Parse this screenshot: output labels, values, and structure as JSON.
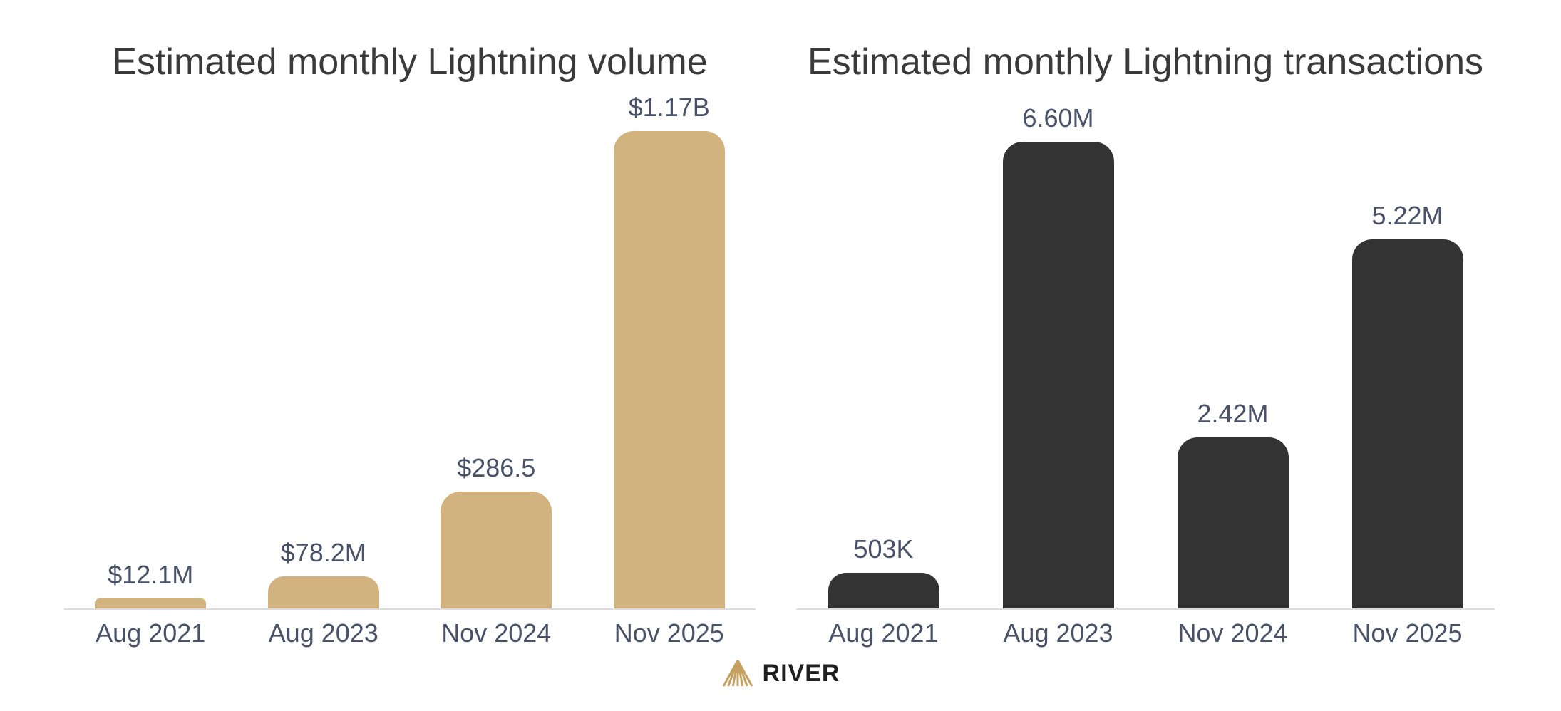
{
  "colors": {
    "background": "#ffffff",
    "title_text": "#3a3a3a",
    "label_text": "#4a5269",
    "axis_line": "#dcdcdc",
    "volume_bar": "#d2b27f",
    "transactions_bar": "#333333",
    "logo_gold": "#c5a05f",
    "logo_text": "#1f1f1f"
  },
  "chart_data": [
    {
      "type": "bar",
      "title": "Estimated monthly Lightning volume",
      "categories": [
        "Aug 2021",
        "Aug 2023",
        "Nov 2024",
        "Nov 2025"
      ],
      "values": [
        12.1,
        78.2,
        286.5,
        1170
      ],
      "value_unit": "USD millions",
      "value_labels": [
        "$12.1M",
        "$78.2M",
        "$286.5",
        "$1.17B"
      ],
      "bar_color": "#d2b27f",
      "xlabel": "",
      "ylabel": "",
      "grid": "off",
      "legend": "none"
    },
    {
      "type": "bar",
      "title": "Estimated monthly Lightning transactions",
      "categories": [
        "Aug 2021",
        "Aug 2023",
        "Nov 2024",
        "Nov 2025"
      ],
      "values": [
        0.503,
        6.6,
        2.42,
        5.22
      ],
      "value_unit": "millions of transactions",
      "value_labels": [
        "503K",
        "6.60M",
        "2.42M",
        "5.22M"
      ],
      "bar_color": "#333333",
      "xlabel": "",
      "ylabel": "",
      "grid": "off",
      "legend": "none"
    }
  ],
  "footer": {
    "brand": "RIVER"
  }
}
